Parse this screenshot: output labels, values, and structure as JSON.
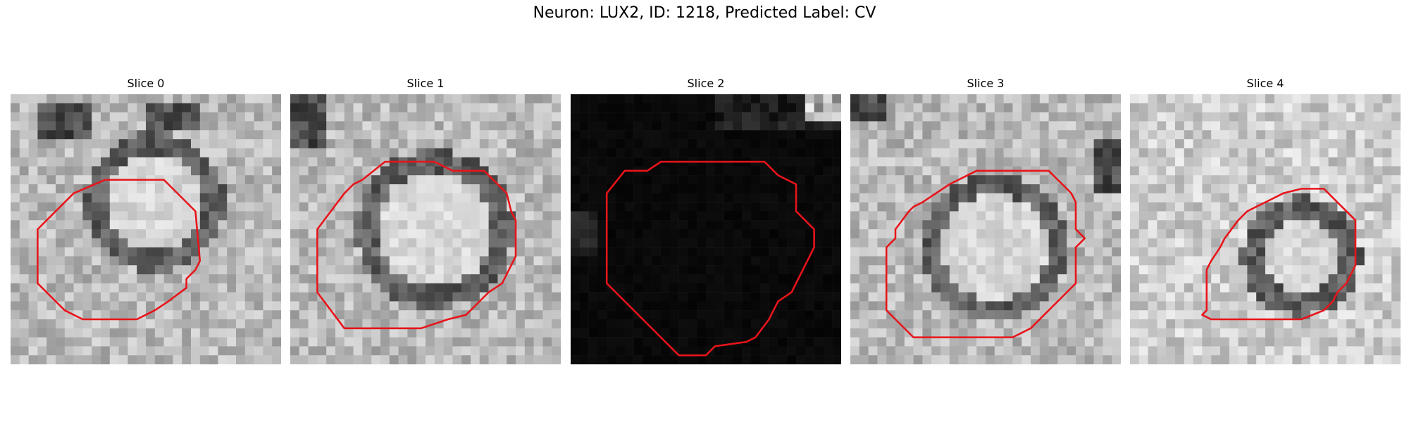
{
  "figure": {
    "title": "Neuron: LUX2, ID: 1218, Predicted Label: CV"
  },
  "panels": [
    {
      "title": "Slice 0",
      "contour_color": "#e8141a",
      "tone": "mid"
    },
    {
      "title": "Slice 1",
      "contour_color": "#e8141a",
      "tone": "mid"
    },
    {
      "title": "Slice 2",
      "contour_color": "#e8141a",
      "tone": "dark"
    },
    {
      "title": "Slice 3",
      "contour_color": "#e8141a",
      "tone": "mid"
    },
    {
      "title": "Slice 4",
      "contour_color": "#e8141a",
      "tone": "light"
    }
  ]
}
